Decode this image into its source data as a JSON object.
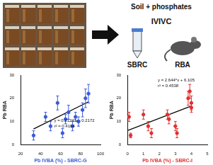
{
  "labels": {
    "title": "Soil + phosphates",
    "method": "IVIVC",
    "in_vitro": "SBRC",
    "in_vivo": "RBA"
  },
  "chart_data": [
    {
      "type": "scatter",
      "x_label": "Pb IVBA (%) - SBRC-G",
      "y_label": "Pb RBA",
      "xlim": [
        20,
        100
      ],
      "ylim": [
        0,
        30
      ],
      "xticks": [
        20,
        40,
        60,
        80,
        100
      ],
      "yticks": [
        0,
        10,
        20,
        30
      ],
      "grid": false,
      "color": "#3b5bdb",
      "annotations": [
        "y = 0.2124*x - 0.2172",
        "r² = 0.4104"
      ],
      "series": [
        {
          "type": "scatter",
          "marker": "circle",
          "color": "#3b5bdb",
          "x": [
            33,
            45,
            50,
            57,
            62,
            65,
            68,
            72,
            75,
            78,
            82,
            85,
            88
          ],
          "values": [
            4,
            12,
            8,
            18,
            5,
            11,
            14,
            8,
            12,
            10,
            15,
            20,
            22
          ],
          "y_err": [
            2,
            2,
            2,
            3,
            2,
            2,
            3,
            2,
            2,
            2,
            3,
            4,
            4
          ]
        },
        {
          "type": "line",
          "line_style": "solid",
          "color": "#000000",
          "x": [
            33,
            88
          ],
          "values": [
            6.8,
            18.5
          ]
        }
      ]
    },
    {
      "type": "scatter",
      "x_label": "Pb IVBA (%) - SBRC-I",
      "y_label": "Pb RBA",
      "xlim": [
        0,
        5
      ],
      "ylim": [
        0,
        30
      ],
      "xticks": [
        0,
        1,
        2,
        3,
        4,
        5
      ],
      "yticks": [
        0,
        10,
        20,
        30
      ],
      "grid": false,
      "color": "#e03131",
      "annotations": [
        "y = 2.644*x + 6.105",
        "r² = 0.4538"
      ],
      "series": [
        {
          "type": "scatter",
          "marker": "circle",
          "color": "#e03131",
          "x": [
            0.1,
            0.2,
            1.0,
            1.3,
            1.5,
            2.5,
            2.6,
            3.0,
            3.1,
            3.8,
            3.9,
            4.0,
            4.0
          ],
          "values": [
            12,
            4,
            13,
            8,
            5,
            13,
            11,
            8,
            5,
            20,
            23,
            18,
            16
          ],
          "y_err": [
            2,
            1,
            2,
            2,
            2,
            2,
            2,
            2,
            2,
            3,
            3,
            3,
            2
          ]
        },
        {
          "type": "line",
          "line_style": "solid",
          "color": "#000000",
          "x": [
            0,
            4
          ],
          "values": [
            6.1,
            16.7
          ]
        }
      ]
    }
  ]
}
